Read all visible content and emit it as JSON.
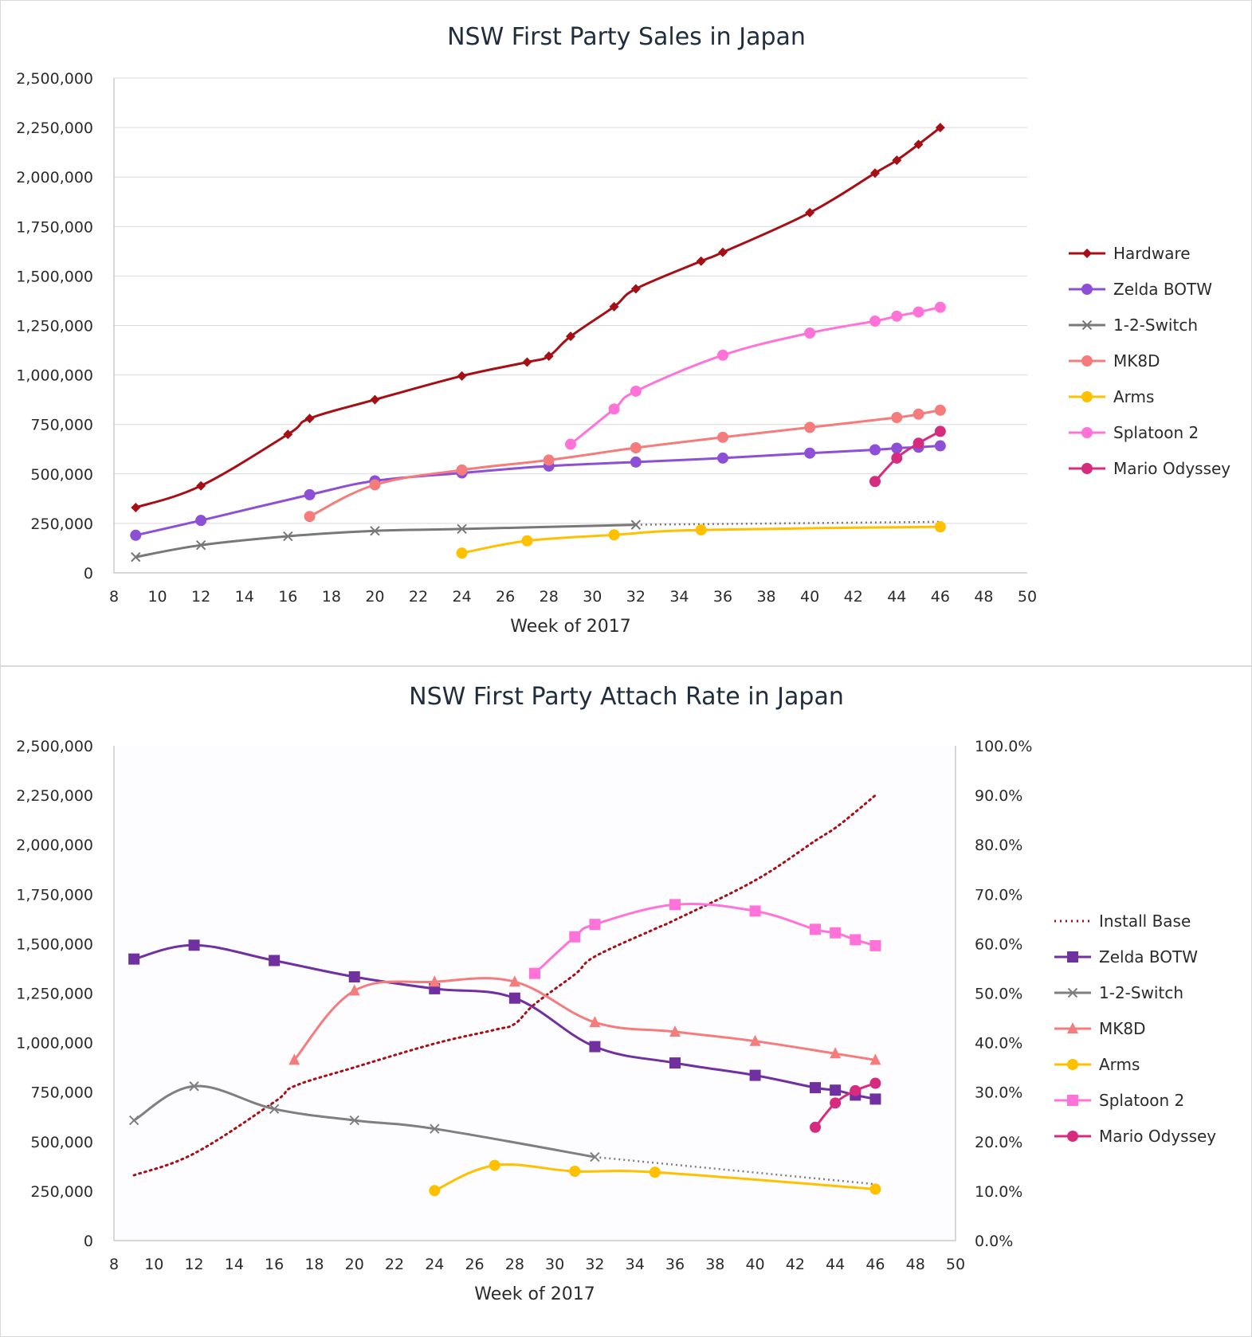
{
  "chart_data": [
    {
      "type": "line",
      "title": "NSW First Party Sales in Japan",
      "xlabel": "Week of 2017",
      "ylabel": "",
      "xlim": [
        8,
        50
      ],
      "ylim": [
        0,
        2500000
      ],
      "x_ticks": [
        8,
        10,
        12,
        14,
        16,
        18,
        20,
        22,
        24,
        26,
        28,
        30,
        32,
        34,
        36,
        38,
        40,
        42,
        44,
        46,
        48,
        50
      ],
      "y_ticks": [
        0,
        250000,
        500000,
        750000,
        1000000,
        1250000,
        1500000,
        1750000,
        2000000,
        2250000,
        2500000
      ],
      "y_tick_labels": [
        "0",
        "250,000",
        "500,000",
        "750,000",
        "1,000,000",
        "1,250,000",
        "1,500,000",
        "1,750,000",
        "2,000,000",
        "2,250,000",
        "2,500,000"
      ],
      "grid": true,
      "legend_position": "right",
      "series": [
        {
          "name": "Hardware",
          "color": "#a50f15",
          "marker": "diamond",
          "x": [
            9,
            12,
            16,
            17,
            20,
            24,
            27,
            28,
            29,
            31,
            32,
            35,
            36,
            40,
            43,
            44,
            45,
            46
          ],
          "y": [
            330000,
            440000,
            700000,
            780000,
            875000,
            995000,
            1065000,
            1095000,
            1195000,
            1345000,
            1435000,
            1575000,
            1620000,
            1820000,
            2020000,
            2085000,
            2165000,
            2250000
          ]
        },
        {
          "name": "Zelda BOTW",
          "color": "#8d4fd6",
          "marker": "circle",
          "x": [
            9,
            12,
            17,
            20,
            24,
            28,
            32,
            36,
            40,
            43,
            44,
            45,
            46
          ],
          "y": [
            190000,
            265000,
            395000,
            465000,
            505000,
            540000,
            560000,
            580000,
            605000,
            622000,
            630000,
            635000,
            642000
          ]
        },
        {
          "name": "1-2-Switch",
          "color": "#787878",
          "marker": "x",
          "x": [
            9,
            12,
            16,
            20,
            24,
            32
          ],
          "y": [
            80000,
            140000,
            185000,
            212000,
            222000,
            243000
          ],
          "projection": {
            "x": [
              32,
              46
            ],
            "y": [
              243000,
              258000
            ]
          }
        },
        {
          "name": "MK8D",
          "color": "#f47c7c",
          "marker": "circle",
          "x": [
            17,
            20,
            24,
            28,
            32,
            36,
            40,
            44,
            45,
            46
          ],
          "y": [
            285000,
            445000,
            520000,
            570000,
            632000,
            685000,
            735000,
            785000,
            802000,
            822000
          ]
        },
        {
          "name": "Arms",
          "color": "#ffc000",
          "marker": "circle",
          "x": [
            24,
            27,
            31,
            35,
            46
          ],
          "y": [
            100000,
            162000,
            192000,
            217000,
            233000
          ]
        },
        {
          "name": "Splatoon 2",
          "color": "#ff73d9",
          "marker": "circle",
          "x": [
            29,
            31,
            32,
            36,
            40,
            43,
            44,
            45,
            46
          ],
          "y": [
            650000,
            828000,
            918000,
            1100000,
            1212000,
            1272000,
            1297000,
            1318000,
            1342000
          ]
        },
        {
          "name": "Mario Odyssey",
          "color": "#d62b7e",
          "marker": "circle",
          "x": [
            43,
            44,
            45,
            46
          ],
          "y": [
            462000,
            580000,
            655000,
            715000
          ]
        }
      ]
    },
    {
      "type": "line",
      "title": "NSW First Party Attach Rate in Japan",
      "xlabel": "Week of 2017",
      "ylabel": "",
      "xlim": [
        8,
        50
      ],
      "ylim": [
        0,
        2500000
      ],
      "y2lim": [
        0,
        100
      ],
      "x_ticks": [
        8,
        10,
        12,
        14,
        16,
        18,
        20,
        22,
        24,
        26,
        28,
        30,
        32,
        34,
        36,
        38,
        40,
        42,
        44,
        46,
        48,
        50
      ],
      "y_ticks": [
        0,
        250000,
        500000,
        750000,
        1000000,
        1250000,
        1500000,
        1750000,
        2000000,
        2250000,
        2500000
      ],
      "y_tick_labels": [
        "0",
        "250,000",
        "500,000",
        "750,000",
        "1,000,000",
        "1,250,000",
        "1,500,000",
        "1,750,000",
        "2,000,000",
        "2,250,000",
        "2,500,000"
      ],
      "y2_ticks": [
        0,
        10,
        20,
        30,
        40,
        50,
        60,
        70,
        80,
        90,
        100
      ],
      "y2_tick_labels": [
        "0.0%",
        "10.0%",
        "20.0%",
        "30.0%",
        "40.0%",
        "50.0%",
        "60.0%",
        "70.0%",
        "80.0%",
        "90.0%",
        "100.0%"
      ],
      "grid": false,
      "legend_position": "right",
      "series": [
        {
          "name": "Install Base",
          "color": "#a50f15",
          "style": "dotted",
          "marker": "none",
          "axis": "left",
          "x": [
            9,
            12,
            16,
            17,
            20,
            24,
            27,
            28,
            29,
            31,
            32,
            35,
            36,
            40,
            43,
            44,
            45,
            46
          ],
          "y": [
            330000,
            440000,
            700000,
            780000,
            875000,
            995000,
            1065000,
            1095000,
            1195000,
            1345000,
            1435000,
            1575000,
            1620000,
            1820000,
            2020000,
            2085000,
            2165000,
            2250000
          ]
        },
        {
          "name": "Zelda BOTW",
          "color": "#7030a0",
          "marker": "square",
          "axis": "right",
          "x": [
            9,
            12,
            16,
            20,
            24,
            28,
            32,
            36,
            40,
            43,
            44,
            45,
            46
          ],
          "y": [
            56.9,
            59.7,
            56.6,
            53.3,
            50.9,
            49.0,
            39.2,
            35.9,
            33.4,
            30.9,
            30.4,
            29.4,
            28.6
          ]
        },
        {
          "name": "1-2-Switch",
          "color": "#7f7f7f",
          "marker": "x",
          "axis": "right",
          "x": [
            9,
            12,
            16,
            20,
            24,
            32
          ],
          "y": [
            24.3,
            31.2,
            26.6,
            24.3,
            22.6,
            16.9
          ],
          "projection": {
            "x": [
              32,
              46
            ],
            "y": [
              16.9,
              11.4
            ]
          }
        },
        {
          "name": "MK8D",
          "color": "#f47c7c",
          "marker": "triangle",
          "axis": "right",
          "x": [
            17,
            20,
            24,
            28,
            32,
            36,
            40,
            44,
            46
          ],
          "y": [
            36.5,
            50.5,
            52.3,
            52.3,
            44.1,
            42.2,
            40.3,
            37.8,
            36.5
          ]
        },
        {
          "name": "Arms",
          "color": "#ffc000",
          "marker": "circle",
          "axis": "right",
          "x": [
            24,
            27,
            31,
            35,
            46
          ],
          "y": [
            10.1,
            15.2,
            14.0,
            13.8,
            10.4
          ]
        },
        {
          "name": "Splatoon 2",
          "color": "#ff73d9",
          "marker": "square",
          "axis": "right",
          "x": [
            29,
            31,
            32,
            36,
            40,
            43,
            44,
            45,
            46
          ],
          "y": [
            54.0,
            61.4,
            63.9,
            67.9,
            66.6,
            62.9,
            62.2,
            60.8,
            59.6
          ]
        },
        {
          "name": "Mario Odyssey",
          "color": "#d62b7e",
          "marker": "circle",
          "axis": "right",
          "x": [
            43,
            44,
            45,
            46
          ],
          "y": [
            22.9,
            27.8,
            30.3,
            31.8
          ]
        }
      ]
    }
  ]
}
